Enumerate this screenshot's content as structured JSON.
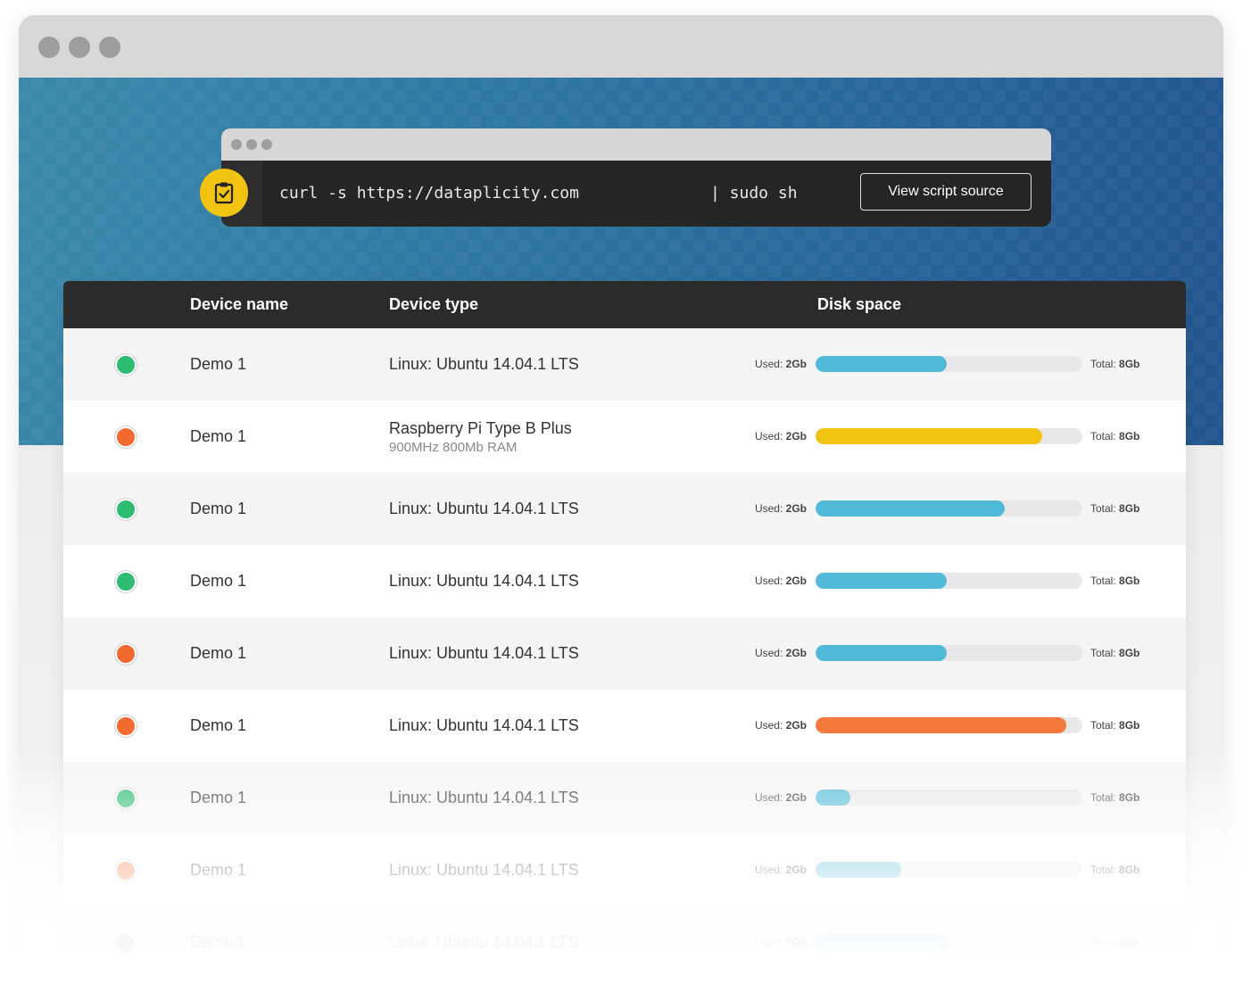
{
  "terminal": {
    "command": "curl -s https://dataplicity.com",
    "pipe": "| sudo sh",
    "view_button": "View script source",
    "clipboard_icon": "clipboard-check-icon",
    "accent": "#f2c311"
  },
  "table": {
    "headers": {
      "name": "Device name",
      "type": "Device type",
      "disk": "Disk space"
    },
    "rows": [
      {
        "status": "online",
        "status_color": "#2ebb72",
        "name": "Demo 1",
        "type": "Linux: Ubuntu 14.04.1 LTS",
        "type_sub": "",
        "used_label": "Used:",
        "used": "2Gb",
        "total_label": "Total:",
        "total": "8Gb",
        "usage": 0.49,
        "bar_color": "#52bad9"
      },
      {
        "status": "offline",
        "status_color": "#f26a30",
        "name": "Demo 1",
        "type": "Raspberry Pi Type B Plus",
        "type_sub": "900MHz 800Mb RAM",
        "used_label": "Used:",
        "used": "2Gb",
        "total_label": "Total:",
        "total": "8Gb",
        "usage": 0.85,
        "bar_color": "#f2c311"
      },
      {
        "status": "online",
        "status_color": "#2ebb72",
        "name": "Demo 1",
        "type": "Linux: Ubuntu 14.04.1 LTS",
        "type_sub": "",
        "used_label": "Used:",
        "used": "2Gb",
        "total_label": "Total:",
        "total": "8Gb",
        "usage": 0.71,
        "bar_color": "#52bad9"
      },
      {
        "status": "online",
        "status_color": "#2ebb72",
        "name": "Demo 1",
        "type": "Linux: Ubuntu 14.04.1 LTS",
        "type_sub": "",
        "used_label": "Used:",
        "used": "2Gb",
        "total_label": "Total:",
        "total": "8Gb",
        "usage": 0.49,
        "bar_color": "#52bad9"
      },
      {
        "status": "offline",
        "status_color": "#f26a30",
        "name": "Demo 1",
        "type": "Linux: Ubuntu 14.04.1 LTS",
        "type_sub": "",
        "used_label": "Used:",
        "used": "2Gb",
        "total_label": "Total:",
        "total": "8Gb",
        "usage": 0.49,
        "bar_color": "#52bad9"
      },
      {
        "status": "offline",
        "status_color": "#f26a30",
        "name": "Demo 1",
        "type": "Linux: Ubuntu 14.04.1 LTS",
        "type_sub": "",
        "used_label": "Used:",
        "used": "2Gb",
        "total_label": "Total:",
        "total": "8Gb",
        "usage": 0.94,
        "bar_color": "#f5783c"
      },
      {
        "status": "online",
        "status_color": "#2ebb72",
        "name": "Demo 1",
        "type": "Linux: Ubuntu 14.04.1 LTS",
        "type_sub": "",
        "used_label": "Used:",
        "used": "2Gb",
        "total_label": "Total:",
        "total": "8Gb",
        "usage": 0.13,
        "bar_color": "#52bad9"
      },
      {
        "status": "offline",
        "status_color": "#f26a30",
        "name": "Demo 1",
        "type": "Linux: Ubuntu 14.04.1 LTS",
        "type_sub": "",
        "used_label": "Used:",
        "used": "2Gb",
        "total_label": "Total:",
        "total": "8Gb",
        "usage": 0.32,
        "bar_color": "#52bad9"
      },
      {
        "status": "online",
        "status_color": "#555555",
        "name": "Demo 1",
        "type": "Linux: Ubuntu 14.04.1 LTS",
        "type_sub": "",
        "used_label": "Used:",
        "used": "2Gb",
        "total_label": "Total:",
        "total": "8Gb",
        "usage": 0.49,
        "bar_color": "#52bad9"
      }
    ]
  }
}
